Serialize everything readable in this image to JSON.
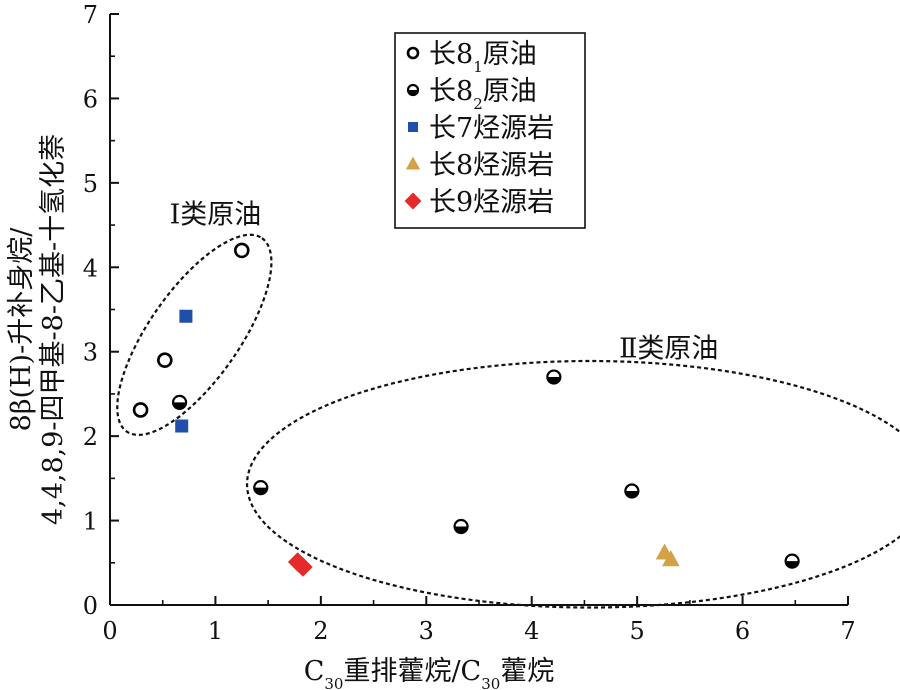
{
  "chart_data": {
    "type": "scatter",
    "xlim": [
      0,
      7
    ],
    "ylim": [
      0,
      7
    ],
    "x_ticks": [
      0,
      1,
      2,
      3,
      4,
      5,
      6,
      7
    ],
    "y_ticks": [
      0,
      1,
      2,
      3,
      4,
      5,
      6,
      7
    ],
    "x_tick_labels": [
      "0",
      "1",
      "2",
      "3",
      "4",
      "5",
      "6",
      "7"
    ],
    "y_tick_labels": [
      "0",
      "1",
      "2",
      "3",
      "4",
      "5",
      "6",
      "7"
    ],
    "xlabel": {
      "parts": [
        {
          "text": "C",
          "sub": false
        },
        {
          "text": "30",
          "sub": true
        },
        {
          "text": "重排藿烷/C",
          "sub": false
        },
        {
          "text": "30",
          "sub": true
        },
        {
          "text": "藿烷",
          "sub": false
        }
      ]
    },
    "ylabel_line1": "8β(H)-升补身烷/",
    "ylabel_line2": "4,4,8,9-四甲基-8-乙基-十氢化萘",
    "grid": false,
    "legend_position": "top-center",
    "series": [
      {
        "name": "长8₁原油",
        "legend_parts": [
          {
            "text": "长8",
            "sub": false
          },
          {
            "text": "1",
            "sub": true
          },
          {
            "text": "原油",
            "sub": false
          }
        ],
        "marker": "open-circle",
        "color": "#000000",
        "points": [
          [
            0.29,
            2.31
          ],
          [
            0.52,
            2.9
          ],
          [
            1.25,
            4.2
          ]
        ]
      },
      {
        "name": "长8₂原油",
        "legend_parts": [
          {
            "text": "长8",
            "sub": false
          },
          {
            "text": "2",
            "sub": true
          },
          {
            "text": "原油",
            "sub": false
          }
        ],
        "marker": "half-filled-circle",
        "color": "#000000",
        "points": [
          [
            0.66,
            2.4
          ],
          [
            1.43,
            1.39
          ],
          [
            3.33,
            0.93
          ],
          [
            4.21,
            2.7
          ],
          [
            4.95,
            1.35
          ],
          [
            6.47,
            0.52
          ]
        ]
      },
      {
        "name": "长7烃源岩",
        "legend_parts": [
          {
            "text": "长7烃源岩",
            "sub": false
          }
        ],
        "marker": "square",
        "color": "#1f4fa8",
        "points": [
          [
            0.72,
            3.42
          ],
          [
            0.68,
            2.12
          ]
        ]
      },
      {
        "name": "长8烃源岩",
        "legend_parts": [
          {
            "text": "长8烃源岩",
            "sub": false
          }
        ],
        "marker": "triangle",
        "color": "#d4a246",
        "points": [
          [
            5.26,
            0.62
          ],
          [
            5.32,
            0.54
          ]
        ]
      },
      {
        "name": "长9烃源岩",
        "legend_parts": [
          {
            "text": "长9烃源岩",
            "sub": false
          }
        ],
        "marker": "diamond",
        "color": "#e62a2a",
        "points": [
          [
            1.78,
            0.51
          ],
          [
            1.83,
            0.45
          ]
        ]
      }
    ],
    "annotations": [
      {
        "text": "Ⅰ类原油",
        "x": 1.0,
        "y": 4.52
      },
      {
        "text": "Ⅱ类原油",
        "x": 5.3,
        "y": 2.93
      }
    ],
    "groups": [
      {
        "label": "Ⅰ类原油",
        "center": [
          0.8,
          3.2
        ],
        "rx": 1.53,
        "ry_data": 0.61,
        "angle_deg": -55
      },
      {
        "label": "Ⅱ类原油",
        "center": [
          4.55,
          1.43
        ],
        "rx": 3.25,
        "ry_data": 1.46,
        "angle_deg": 0
      }
    ]
  }
}
